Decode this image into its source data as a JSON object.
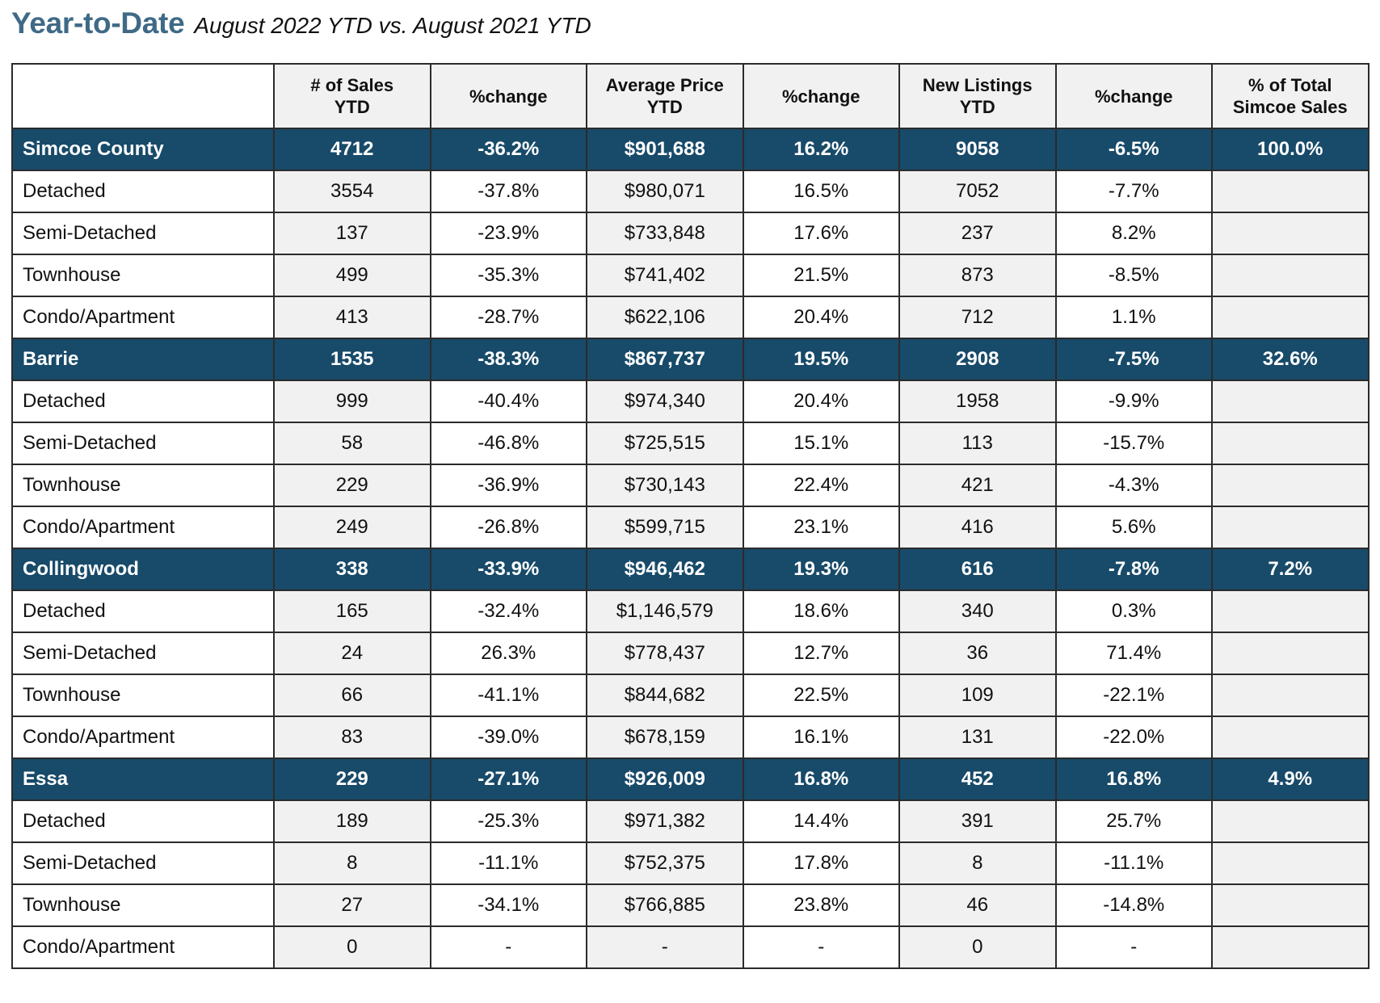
{
  "title": {
    "main": "Year-to-Date",
    "subtitle": "August 2022 YTD vs. August 2021 YTD"
  },
  "colors": {
    "title": "#3f6a87",
    "region_row_bg": "#184a69",
    "region_row_text": "#ffffff",
    "shaded_column_bg": "#f1f1f1",
    "border": "#2b2b2b"
  },
  "table": {
    "columns": [
      {
        "line1": "",
        "line2": ""
      },
      {
        "line1": "# of Sales",
        "line2": "YTD"
      },
      {
        "line1": "%change",
        "line2": ""
      },
      {
        "line1": "Average Price",
        "line2": "YTD"
      },
      {
        "line1": "%change",
        "line2": ""
      },
      {
        "line1": "New Listings",
        "line2": "YTD"
      },
      {
        "line1": "%change",
        "line2": ""
      },
      {
        "line1": "% of Total",
        "line2": "Simcoe Sales"
      }
    ],
    "rows": [
      {
        "type": "region",
        "cells": [
          "Simcoe County",
          "4712",
          "-36.2%",
          "$901,688",
          "16.2%",
          "9058",
          "-6.5%",
          "100.0%"
        ]
      },
      {
        "type": "sub",
        "cells": [
          "Detached",
          "3554",
          "-37.8%",
          "$980,071",
          "16.5%",
          "7052",
          "-7.7%",
          ""
        ]
      },
      {
        "type": "sub",
        "cells": [
          "Semi-Detached",
          "137",
          "-23.9%",
          "$733,848",
          "17.6%",
          "237",
          "8.2%",
          ""
        ]
      },
      {
        "type": "sub",
        "cells": [
          "Townhouse",
          "499",
          "-35.3%",
          "$741,402",
          "21.5%",
          "873",
          "-8.5%",
          ""
        ]
      },
      {
        "type": "sub",
        "cells": [
          "Condo/Apartment",
          "413",
          "-28.7%",
          "$622,106",
          "20.4%",
          "712",
          "1.1%",
          ""
        ]
      },
      {
        "type": "region",
        "cells": [
          "Barrie",
          "1535",
          "-38.3%",
          "$867,737",
          "19.5%",
          "2908",
          "-7.5%",
          "32.6%"
        ]
      },
      {
        "type": "sub",
        "cells": [
          "Detached",
          "999",
          "-40.4%",
          "$974,340",
          "20.4%",
          "1958",
          "-9.9%",
          ""
        ]
      },
      {
        "type": "sub",
        "cells": [
          "Semi-Detached",
          "58",
          "-46.8%",
          "$725,515",
          "15.1%",
          "113",
          "-15.7%",
          ""
        ]
      },
      {
        "type": "sub",
        "cells": [
          "Townhouse",
          "229",
          "-36.9%",
          "$730,143",
          "22.4%",
          "421",
          "-4.3%",
          ""
        ]
      },
      {
        "type": "sub",
        "cells": [
          "Condo/Apartment",
          "249",
          "-26.8%",
          "$599,715",
          "23.1%",
          "416",
          "5.6%",
          ""
        ]
      },
      {
        "type": "region",
        "cells": [
          "Collingwood",
          "338",
          "-33.9%",
          "$946,462",
          "19.3%",
          "616",
          "-7.8%",
          "7.2%"
        ]
      },
      {
        "type": "sub",
        "cells": [
          "Detached",
          "165",
          "-32.4%",
          "$1,146,579",
          "18.6%",
          "340",
          "0.3%",
          ""
        ]
      },
      {
        "type": "sub",
        "cells": [
          "Semi-Detached",
          "24",
          "26.3%",
          "$778,437",
          "12.7%",
          "36",
          "71.4%",
          ""
        ]
      },
      {
        "type": "sub",
        "cells": [
          "Townhouse",
          "66",
          "-41.1%",
          "$844,682",
          "22.5%",
          "109",
          "-22.1%",
          ""
        ]
      },
      {
        "type": "sub",
        "cells": [
          "Condo/Apartment",
          "83",
          "-39.0%",
          "$678,159",
          "16.1%",
          "131",
          "-22.0%",
          ""
        ]
      },
      {
        "type": "region",
        "cells": [
          "Essa",
          "229",
          "-27.1%",
          "$926,009",
          "16.8%",
          "452",
          "16.8%",
          "4.9%"
        ]
      },
      {
        "type": "sub",
        "cells": [
          "Detached",
          "189",
          "-25.3%",
          "$971,382",
          "14.4%",
          "391",
          "25.7%",
          ""
        ]
      },
      {
        "type": "sub",
        "cells": [
          "Semi-Detached",
          "8",
          "-11.1%",
          "$752,375",
          "17.8%",
          "8",
          "-11.1%",
          ""
        ]
      },
      {
        "type": "sub",
        "cells": [
          "Townhouse",
          "27",
          "-34.1%",
          "$766,885",
          "23.8%",
          "46",
          "-14.8%",
          ""
        ]
      },
      {
        "type": "sub",
        "cells": [
          "Condo/Apartment",
          "0",
          "-",
          "-",
          "-",
          "0",
          "-",
          ""
        ]
      }
    ]
  }
}
